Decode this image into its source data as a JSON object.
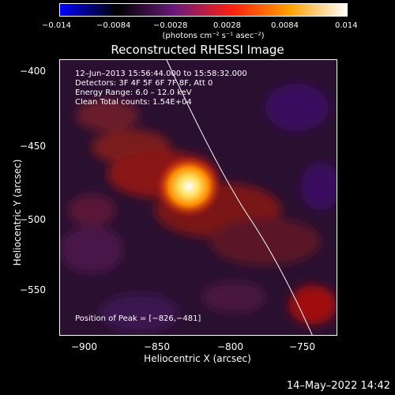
{
  "colorbar": {
    "ticks": [
      "−0.014",
      "−0.0084",
      "−0.0028",
      "0.0028",
      "0.0084",
      "0.014"
    ],
    "units": "(photons cm⁻² s⁻¹ asec⁻²)",
    "colors": [
      "#0000ff",
      "#000000",
      "#6a1a7a",
      "#ff2010",
      "#ffa000",
      "#ffffff"
    ]
  },
  "plot": {
    "title": "Reconstructed RHESSI Image",
    "info_lines": [
      "12–Jun–2013 15:56:44.000 to 15:58:32.000",
      "Detectors: 3F 4F 5F 6F 7F 8F, Att 0",
      "Energy Range: 6.0 – 12.0 keV",
      "Clean     Total counts: 1.54E+04"
    ],
    "peak_text": "Position of Peak = [−826,−481]",
    "xlabel": "Heliocentric X (arcsec)",
    "ylabel": "Heliocentric Y (arcsec)",
    "xticks": [
      "−900",
      "−850",
      "−800",
      "−750"
    ],
    "yticks": [
      "−400",
      "−450",
      "−500",
      "−550"
    ],
    "xlim": [
      -920,
      -728
    ],
    "ylim": [
      -583,
      -392
    ]
  },
  "footer": {
    "timestamp": "14–May–2022 14:42"
  }
}
